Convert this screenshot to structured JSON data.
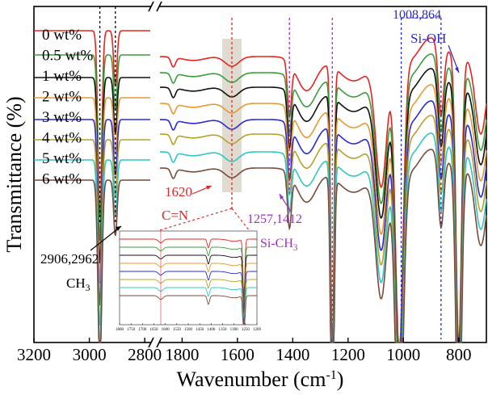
{
  "chart_data": {
    "type": "line",
    "title": "",
    "xlabel": "Wavenumber (cm",
    "xlabel_sup": "-1",
    "xlabel_tail": ")",
    "ylabel": "Transmittance (%)",
    "x_ticks": [
      "3200",
      "3000",
      "2800",
      "1800",
      "1600",
      "1400",
      "1200",
      "1000",
      "800"
    ],
    "x_ranges": [
      [
        3200,
        2780
      ],
      [
        1880,
        700
      ]
    ],
    "series": [
      {
        "name": "0 wt%",
        "color": "#e8231f"
      },
      {
        "name": "0.5 wt%",
        "color": "#3a9d38"
      },
      {
        "name": "1 wt%",
        "color": "#111111"
      },
      {
        "name": "2 wt%",
        "color": "#e59a30"
      },
      {
        "name": "3 wt%",
        "color": "#2a2ad8"
      },
      {
        "name": "4 wt%",
        "color": "#b8a02a"
      },
      {
        "name": "5 wt%",
        "color": "#2fc6c6"
      },
      {
        "name": "6 wt%",
        "color": "#7a4a3a"
      }
    ],
    "annotations": {
      "ch3_peaks": "2906,2962",
      "ch3_label": "CH",
      "ch3_sub": "3",
      "cn_peak": "1620",
      "cn_label": "C=N",
      "sich3_peaks": "1257,1412",
      "sich3_label": "Si-CH",
      "sich3_sub": "3",
      "sioh_peaks": "1008,864",
      "sioh_label": "Si-OH"
    },
    "inset_x_ticks": [
      "1800",
      "1750",
      "1700",
      "1650",
      "1600",
      "1550",
      "1500",
      "1450",
      "1400",
      "1350",
      "1300",
      "1250",
      "1200"
    ],
    "colors": {
      "ch3_line": "#000000",
      "cn": "#d92a2a",
      "sich3": "#9a30c8",
      "sioh": "#2a2ad0",
      "shade": "#d6cfc0"
    }
  }
}
